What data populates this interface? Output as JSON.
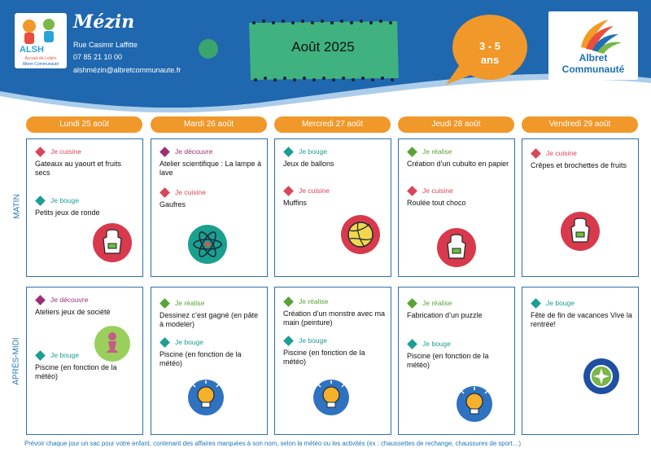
{
  "header": {
    "site_name": "Mézin",
    "address": "Rue Casimir Laffitte",
    "phone": "07 85 21 10 00",
    "email": "alshmézin@albretcommunaute.fr",
    "month": "Août 2025",
    "age": "3 - 5",
    "age_unit": "ans",
    "logo_left": {
      "letters": "ALSH",
      "line1": "Accueil de Loisirs",
      "line2": "Albret Communauté"
    },
    "logo_right": {
      "line1": "Albret",
      "line2": "Communauté"
    }
  },
  "colors": {
    "header_blue": "#1f67ae",
    "orange": "#f0982a",
    "green_box": "#3fb27f",
    "card_border": "#2d6fae",
    "cuisine": "#d9455a",
    "bouge": "#1b9e93",
    "decouvre": "#9a2f78",
    "realise": "#59a335"
  },
  "side_labels": {
    "morning": "MATIN",
    "afternoon": "APRÈS-MIDI"
  },
  "days": [
    "Lundi 25 août",
    "Mardi 26 août",
    "Mercredi 27 août",
    "Jeudi 28 août",
    "Vendredi 29 août"
  ],
  "morning": [
    {
      "activities": [
        {
          "tag": "Je cuisine",
          "desc": "Gateaux au yaourt et fruits secs"
        },
        {
          "tag": "Je bouge",
          "desc": "Petits jeux de ronde"
        }
      ],
      "icon": "apron-icon"
    },
    {
      "activities": [
        {
          "tag": "Je découvre",
          "desc": "Atelier scientifique : La lampe à lave"
        },
        {
          "tag": "Je cuisine",
          "desc": "Gaufres"
        }
      ],
      "icon": "atom-icon"
    },
    {
      "activities": [
        {
          "tag": "Je bouge",
          "desc": "Jeux de ballons"
        },
        {
          "tag": "Je cuisine",
          "desc": "Muffins"
        }
      ],
      "icon": "volleyball-icon"
    },
    {
      "activities": [
        {
          "tag": "Je réalise",
          "desc": "Création d’un cubulto en papier"
        },
        {
          "tag": "Je cuisine",
          "desc": "Roulée tout choco"
        }
      ],
      "icon": "apron-icon"
    },
    {
      "activities": [
        {
          "tag": "Je cuisine",
          "desc": "Crêpes et brochettes de fruits"
        }
      ],
      "icon": "apron-icon"
    }
  ],
  "afternoon": [
    {
      "activities": [
        {
          "tag": "Je découvre",
          "desc": "Ateliers jeux de société"
        },
        {
          "tag": "Je bouge",
          "desc": "Piscine (en fonction de la météo)"
        }
      ],
      "icon": "chess-pawn-icon"
    },
    {
      "activities": [
        {
          "tag": "Je réalise",
          "desc": "Dessinez c’est  gagné (en pâte à modeler)"
        },
        {
          "tag": "Je bouge",
          "desc": "Piscine (en fonction de la météo)"
        }
      ],
      "icon": "lightbulb-icon"
    },
    {
      "activities": [
        {
          "tag": "Je réalise",
          "desc": "Création d’un monstre avec ma main (peinture)"
        },
        {
          "tag": "Je bouge",
          "desc": "Piscine (en fonction de la météo)"
        }
      ],
      "icon": "lightbulb-icon"
    },
    {
      "activities": [
        {
          "tag": "Je réalise",
          "desc": "Fabrication d’un puzzle"
        },
        {
          "tag": "Je bouge",
          "desc": "Piscine (en fonction de la météo)"
        }
      ],
      "icon": "lightbulb-icon"
    },
    {
      "activities": [
        {
          "tag": "Je bouge",
          "desc": "Fête de fin de vacances Vive la rentrée!"
        }
      ],
      "icon": "compass-icon"
    }
  ],
  "footer": "Prévoir chaque jour un sac pour votre enfant, contenant des affaires marquées à son nom, selon la météo ou les activités (ex : chaussettes de rechange, chaussures de sport…)"
}
